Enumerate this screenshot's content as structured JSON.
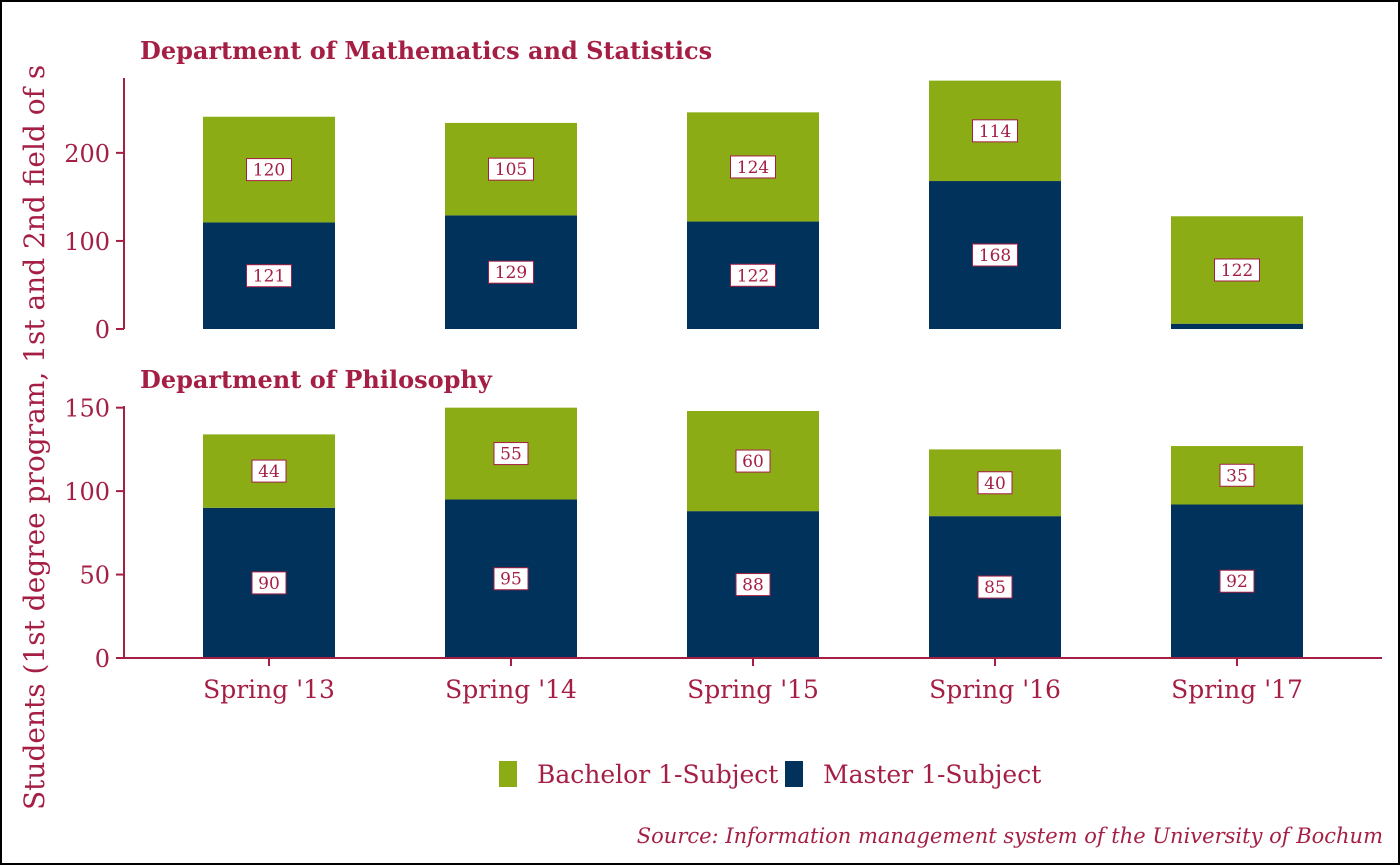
{
  "colors": {
    "accent": "#a51f44",
    "bachelor": "#8bac14",
    "master": "#00325c",
    "label_border": "#a51f44",
    "frame": "#000000"
  },
  "chart_data": {
    "type": "bar",
    "stacked": true,
    "ylabel": "Students (1st degree program, 1st and 2nd field of s",
    "categories": [
      "Spring '13",
      "Spring '14",
      "Spring '15",
      "Spring '16",
      "Spring '17"
    ],
    "legend": {
      "placement": "bottom",
      "entries": [
        "Bachelor 1-Subject",
        "Master 1-Subject"
      ]
    },
    "source": "Source: Information management system of the University of Bochum",
    "panels": [
      {
        "title": "Department of Mathematics and Statistics",
        "ylim": [
          0,
          285
        ],
        "yticks": [
          0,
          100,
          200
        ],
        "series": [
          {
            "name": "Master 1-Subject",
            "values": [
              121,
              129,
              122,
              168,
              6
            ],
            "labels": [
              "121",
              "129",
              "122",
              "168",
              null
            ]
          },
          {
            "name": "Bachelor 1-Subject",
            "values": [
              120,
              105,
              124,
              114,
              122
            ],
            "labels": [
              "120",
              "105",
              "124",
              "114",
              "122"
            ]
          }
        ]
      },
      {
        "title": "Department of Philosophy",
        "ylim": [
          0,
          151
        ],
        "yticks": [
          0,
          50,
          100,
          150
        ],
        "series": [
          {
            "name": "Master 1-Subject",
            "values": [
              90,
              95,
              88,
              85,
              92
            ],
            "labels": [
              "90",
              "95",
              "88",
              "85",
              "92"
            ]
          },
          {
            "name": "Bachelor 1-Subject",
            "values": [
              44,
              55,
              60,
              40,
              35
            ],
            "labels": [
              "44",
              "55",
              "60",
              "40",
              "35"
            ]
          }
        ]
      }
    ]
  }
}
